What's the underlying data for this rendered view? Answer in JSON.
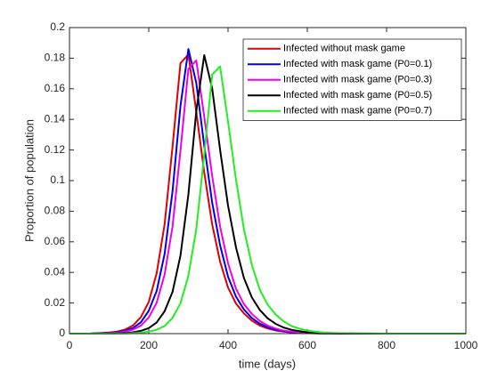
{
  "chart_data": {
    "type": "line",
    "xlabel": "time (days)",
    "ylabel": "Proportion of population",
    "x": [
      0,
      50,
      100,
      120,
      140,
      160,
      180,
      200,
      220,
      240,
      260,
      280,
      300,
      320,
      340,
      360,
      380,
      400,
      420,
      440,
      460,
      480,
      500,
      520,
      540,
      560,
      580,
      600,
      620,
      640,
      660,
      680,
      700,
      800,
      900,
      1000
    ],
    "series": [
      {
        "name": "Infected without mask game",
        "color": "#e00000",
        "values": [
          0,
          0,
          0.0007,
          0.0013,
          0.0026,
          0.0053,
          0.0107,
          0.0207,
          0.0395,
          0.0714,
          0.1222,
          0.1767,
          0.1824,
          0.1448,
          0.1053,
          0.0714,
          0.047,
          0.0301,
          0.0197,
          0.0132,
          0.0085,
          0.0053,
          0.0034,
          0.0021,
          0.0013,
          0.0008,
          0.0005,
          0.0003,
          0.0002,
          0.0001,
          0.0001,
          0.0001,
          0,
          0,
          0,
          0
        ]
      },
      {
        "name": "Infected with mask game (P0=0.1)",
        "color": "#0000e6",
        "values": [
          0,
          0,
          0.0004,
          0.0009,
          0.0019,
          0.0037,
          0.0074,
          0.0149,
          0.0279,
          0.0521,
          0.093,
          0.1488,
          0.186,
          0.1637,
          0.1228,
          0.0856,
          0.0577,
          0.0372,
          0.0242,
          0.0158,
          0.0102,
          0.0065,
          0.0041,
          0.0026,
          0.0017,
          0.0009,
          0.0006,
          0.0004,
          0.0002,
          0.0001,
          0.0001,
          0.0001,
          0,
          0,
          0,
          0
        ]
      },
      {
        "name": "Infected with mask game (P0=0.3)",
        "color": "#ee00ee",
        "values": [
          0,
          0,
          0.0003,
          0.0006,
          0.0013,
          0.0026,
          0.0052,
          0.0105,
          0.0202,
          0.0386,
          0.0699,
          0.1196,
          0.173,
          0.1785,
          0.1417,
          0.103,
          0.0699,
          0.046,
          0.0294,
          0.0193,
          0.0129,
          0.0083,
          0.0052,
          0.0033,
          0.002,
          0.0013,
          0.0007,
          0.0005,
          0.0003,
          0.0002,
          0.0001,
          0.0001,
          0.0001,
          0,
          0,
          0
        ]
      },
      {
        "name": "Infected with mask game (P0=0.5)",
        "color": "#000000",
        "values": [
          0,
          0,
          0.0001,
          0.0002,
          0.0004,
          0.0009,
          0.0018,
          0.0036,
          0.0073,
          0.0146,
          0.0273,
          0.051,
          0.091,
          0.1456,
          0.182,
          0.1602,
          0.1201,
          0.0837,
          0.0564,
          0.0364,
          0.0237,
          0.0155,
          0.01,
          0.0064,
          0.004,
          0.0025,
          0.0016,
          0.0009,
          0.0005,
          0.0004,
          0.0002,
          0.0001,
          0.0001,
          0,
          0,
          0
        ]
      },
      {
        "name": "Infected with mask game (P0=0.7)",
        "color": "#22ee22",
        "values": [
          0,
          0,
          0,
          0.0001,
          0.0001,
          0.0003,
          0.0006,
          0.0013,
          0.0025,
          0.005,
          0.0103,
          0.0198,
          0.0378,
          0.0684,
          0.117,
          0.1692,
          0.1746,
          0.1386,
          0.1008,
          0.0684,
          0.045,
          0.0288,
          0.0189,
          0.0126,
          0.0081,
          0.005,
          0.0032,
          0.002,
          0.0013,
          0.0007,
          0.0005,
          0.0003,
          0.0002,
          0,
          0,
          0
        ]
      }
    ],
    "xlim": [
      0,
      1000
    ],
    "xticks": [
      0,
      200,
      400,
      600,
      800,
      1000
    ],
    "ylim": [
      0,
      0.2
    ],
    "yticks": [
      0,
      0.02,
      0.04,
      0.06,
      0.08,
      0.1,
      0.12,
      0.14,
      0.16,
      0.18,
      0.2
    ],
    "grid": false,
    "legend": "upper right"
  }
}
